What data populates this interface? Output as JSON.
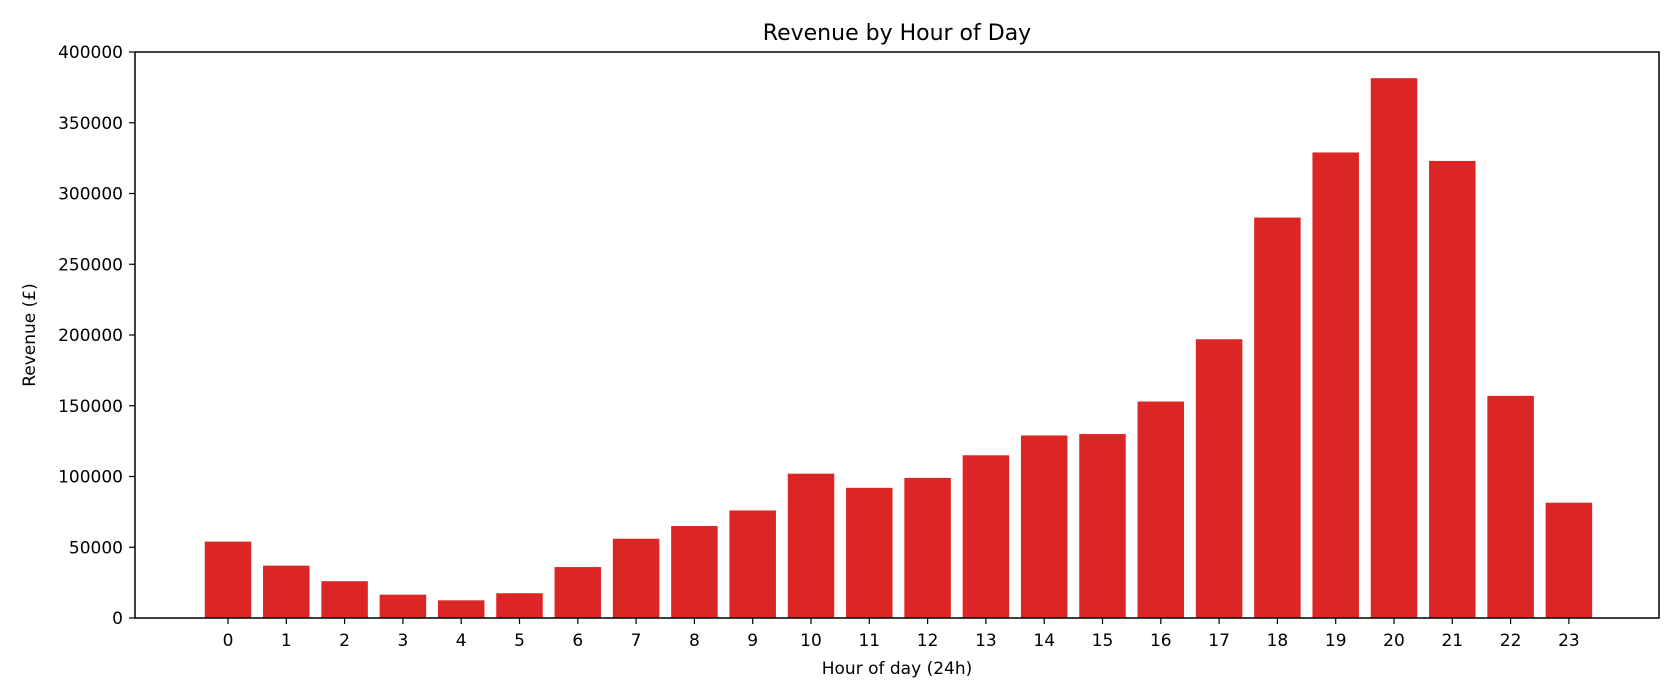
{
  "chart_data": {
    "type": "bar",
    "title": "Revenue by Hour of Day",
    "xlabel": "Hour of day (24h)",
    "ylabel": "Revenue (£)",
    "categories": [
      "0",
      "1",
      "2",
      "3",
      "4",
      "5",
      "6",
      "7",
      "8",
      "9",
      "10",
      "11",
      "12",
      "13",
      "14",
      "15",
      "16",
      "17",
      "18",
      "19",
      "20",
      "21",
      "22",
      "23"
    ],
    "values": [
      54000,
      37000,
      26000,
      16500,
      12500,
      17500,
      36000,
      56000,
      65000,
      76000,
      102000,
      92000,
      99000,
      115000,
      129000,
      130000,
      153000,
      197000,
      283000,
      329000,
      381500,
      323000,
      157000,
      81500
    ],
    "ylim": [
      0,
      400000
    ],
    "yticks": [
      "0",
      "50000",
      "100000",
      "150000",
      "200000",
      "250000",
      "300000",
      "350000",
      "400000"
    ],
    "bar_color": "#dc2626",
    "grid": false,
    "legend": "none"
  }
}
